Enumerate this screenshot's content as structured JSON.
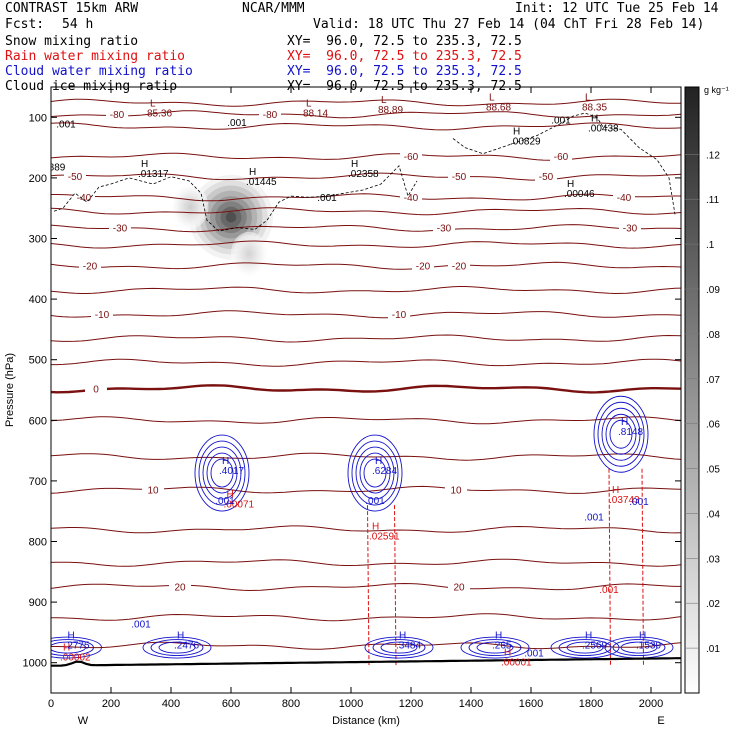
{
  "header": {
    "title": "CONTRAST 15km ARW",
    "source": "NCAR/MMM",
    "init": "Init: 12 UTC Tue 25 Feb 14",
    "fcst_label": "Fcst:",
    "fcst_value": "54 h",
    "valid": "Valid: 18 UTC Thu 27 Feb 14 (04 ChT Fri 28 Feb 14)"
  },
  "fields": [
    {
      "name": "Snow mixing ratio",
      "xy": "XY=  96.0, 72.5 to 235.3, 72.5",
      "color": "#000000"
    },
    {
      "name": "Rain water mixing ratio",
      "xy": "XY=  96.0, 72.5 to 235.3, 72.5",
      "color": "#dd1111"
    },
    {
      "name": "Cloud water mixing ratio",
      "xy": "XY=  96.0, 72.5 to 235.3, 72.5",
      "color": "#1111cc"
    },
    {
      "name": "Cloud ice mixing ratio",
      "xy": "XY=  96.0, 72.5 to 235.3, 72.5",
      "color": "#000000"
    }
  ],
  "colorbar": {
    "unit": "g kg⁻¹",
    "ticks": [
      ".01",
      ".02",
      ".03",
      ".04",
      ".05",
      ".06",
      ".07",
      ".08",
      ".09",
      ".1",
      ".11",
      ".12"
    ],
    "values": [
      0.01,
      0.02,
      0.03,
      0.04,
      0.05,
      0.06,
      0.07,
      0.08,
      0.09,
      0.1,
      0.11,
      0.12
    ],
    "max": 0.135
  },
  "chart_data": {
    "type": "contour",
    "xlabel": "Distance (km)",
    "ylabel": "Pressure (hPa)",
    "xlim": [
      0,
      2100
    ],
    "ylim": [
      1050,
      50
    ],
    "xticks": [
      0,
      200,
      400,
      600,
      800,
      1000,
      1200,
      1400,
      1600,
      1800,
      2000
    ],
    "xtick_labels": [
      "0",
      "200",
      "400",
      "600",
      "800",
      "1000",
      "1200",
      "1400",
      "1600",
      "1800",
      "2000"
    ],
    "yticks": [
      100,
      200,
      300,
      400,
      500,
      600,
      700,
      800,
      900,
      1000
    ],
    "ytick_labels": [
      "100",
      "200",
      "300",
      "400",
      "500",
      "600",
      "700",
      "800",
      "900",
      "1000"
    ],
    "west_label": "W",
    "east_label": "E",
    "temperature_contours": [
      {
        "label": "-80",
        "pressure": 95,
        "at_x": [
          220,
          730
        ]
      },
      {
        "label": "-60",
        "pressure": 165,
        "at_x": [
          1200,
          1700
        ]
      },
      {
        "label": "-50",
        "pressure": 198,
        "at_x": [
          80,
          1360,
          1650
        ]
      },
      {
        "label": "-40",
        "pressure": 232,
        "at_x": [
          110,
          1200,
          1910
        ]
      },
      {
        "label": "-30",
        "pressure": 283,
        "at_x": [
          230,
          1310,
          1930
        ]
      },
      {
        "label": "-20",
        "pressure": 345,
        "at_x": [
          130,
          1240,
          1360
        ]
      },
      {
        "label": "-10",
        "pressure": 425,
        "at_x": [
          170,
          1160
        ]
      },
      {
        "label": "0",
        "pressure": 548,
        "at_x": [
          150
        ]
      },
      {
        "label": "10",
        "pressure": 715,
        "at_x": [
          340,
          1350
        ]
      },
      {
        "label": "20",
        "pressure": 875,
        "at_x": [
          430,
          1360
        ]
      },
      {
        "label": "",
        "pressure": 76,
        "at_x": []
      },
      {
        "label": "",
        "pressure": 115,
        "at_x": []
      },
      {
        "label": "",
        "pressure": 255,
        "at_x": []
      },
      {
        "label": "",
        "pressure": 310,
        "at_x": []
      },
      {
        "label": "",
        "pressure": 385,
        "at_x": []
      },
      {
        "label": "",
        "pressure": 465,
        "at_x": []
      },
      {
        "label": "",
        "pressure": 505,
        "at_x": []
      },
      {
        "label": "",
        "pressure": 600,
        "at_x": []
      },
      {
        "label": "",
        "pressure": 660,
        "at_x": []
      },
      {
        "label": "",
        "pressure": 780,
        "at_x": []
      },
      {
        "label": "",
        "pressure": 835,
        "at_x": []
      },
      {
        "label": "",
        "pressure": 925,
        "at_x": []
      },
      {
        "label": "",
        "pressure": 972,
        "at_x": []
      }
    ],
    "lows": [
      {
        "x": 330,
        "pressure": 82,
        "label": "L",
        "value": "85.36"
      },
      {
        "x": 850,
        "pressure": 82,
        "label": "L",
        "value": "88.14"
      },
      {
        "x": 1100,
        "pressure": 76,
        "label": "L",
        "value": "88.89"
      },
      {
        "x": 1460,
        "pressure": 72,
        "label": "L",
        "value": "88.68"
      },
      {
        "x": 1780,
        "pressure": 72,
        "label": "L",
        "value": "88.35"
      }
    ],
    "snow_maxima": [
      {
        "x": 300,
        "pressure": 182,
        "label": "H",
        "value": ".01317"
      },
      {
        "x": 660,
        "pressure": 195,
        "label": "H",
        "value": ".01445"
      },
      {
        "x": 1000,
        "pressure": 182,
        "label": "H",
        "value": ".02358"
      },
      {
        "x": 1540,
        "pressure": 128,
        "label": "H",
        "value": ".00829"
      },
      {
        "x": 1800,
        "pressure": 107,
        "label": "H",
        "value": ".00438"
      },
      {
        "x": 1720,
        "pressure": 215,
        "label": "H",
        "value": ".00046"
      }
    ],
    "snow_labels": [
      {
        "x": 50,
        "pressure": 117,
        "value": ".001"
      },
      {
        "x": 620,
        "pressure": 114,
        "value": ".001"
      },
      {
        "x": 1700,
        "pressure": 110,
        "value": ".001"
      },
      {
        "x": 920,
        "pressure": 238,
        "value": ".001"
      },
      {
        "x": 20,
        "pressure": 188,
        "value": "889"
      }
    ],
    "snow_contour": [
      [
        10,
        255
      ],
      [
        40,
        250
      ],
      [
        80,
        225
      ],
      [
        120,
        240
      ],
      [
        160,
        215
      ],
      [
        200,
        210
      ],
      [
        260,
        200
      ],
      [
        340,
        210
      ],
      [
        400,
        198
      ],
      [
        460,
        205
      ],
      [
        500,
        225
      ],
      [
        520,
        270
      ],
      [
        560,
        288
      ],
      [
        620,
        282
      ],
      [
        680,
        285
      ],
      [
        720,
        270
      ],
      [
        760,
        240
      ],
      [
        800,
        230
      ],
      [
        860,
        232
      ],
      [
        920,
        230
      ],
      [
        980,
        225
      ],
      [
        1040,
        220
      ],
      [
        1100,
        210
      ],
      [
        1160,
        180
      ],
      [
        1190,
        230
      ],
      [
        1220,
        205
      ]
    ],
    "ice_contour": [
      [
        1340,
        135
      ],
      [
        1380,
        150
      ],
      [
        1440,
        160
      ],
      [
        1500,
        150
      ],
      [
        1560,
        140
      ],
      [
        1620,
        130
      ],
      [
        1660,
        120
      ],
      [
        1700,
        110
      ],
      [
        1740,
        98
      ],
      [
        1780,
        93
      ],
      [
        1820,
        100
      ],
      [
        1840,
        116
      ],
      [
        1900,
        120
      ],
      [
        1960,
        150
      ],
      [
        2020,
        170
      ],
      [
        2060,
        200
      ],
      [
        2080,
        260
      ]
    ],
    "snow_heatmap": [
      {
        "x": 600,
        "pressure": 265,
        "sx": 70,
        "sp": 35,
        "peak": 0.13
      },
      {
        "x": 465,
        "pressure": 248,
        "sx": 30,
        "sp": 18,
        "peak": 0.035
      },
      {
        "x": 660,
        "pressure": 325,
        "sx": 30,
        "sp": 18,
        "peak": 0.03
      }
    ],
    "rain_maxima": [
      {
        "x": 585,
        "pressure": 727,
        "label": "H",
        "value": ".00071"
      },
      {
        "x": 1070,
        "pressure": 780,
        "label": "H",
        "value": ".02591"
      },
      {
        "x": 1870,
        "pressure": 720,
        "label": "H",
        "value": ".03743"
      },
      {
        "x": 40,
        "pressure": 980,
        "label": "H",
        "value": ".00002"
      },
      {
        "x": 1510,
        "pressure": 988,
        "label": "H",
        "value": ".00001"
      }
    ],
    "rain_labels": [
      {
        "x": 1860,
        "pressure": 885,
        "value": ".001"
      }
    ],
    "cloud_maxima": [
      {
        "x": 570,
        "pressure": 672,
        "label": "H",
        "value": ".4017"
      },
      {
        "x": 1080,
        "pressure": 672,
        "label": "H",
        "value": ".6284"
      },
      {
        "x": 1900,
        "pressure": 608,
        "label": "H",
        "value": ".8148"
      },
      {
        "x": 55,
        "pressure": 960,
        "label": "H",
        "value": ".2775"
      },
      {
        "x": 420,
        "pressure": 960,
        "label": "H",
        "value": ".2476"
      },
      {
        "x": 1160,
        "pressure": 960,
        "label": "H",
        "value": ".3484"
      },
      {
        "x": 1480,
        "pressure": 960,
        "label": "H",
        "value": ".265"
      },
      {
        "x": 1780,
        "pressure": 960,
        "label": "H",
        "value": ".2569"
      },
      {
        "x": 1960,
        "pressure": 960,
        "label": "H",
        "value": ".1539"
      }
    ],
    "cloud_labels": [
      {
        "x": 580,
        "pressure": 738,
        "value": ".001"
      },
      {
        "x": 1080,
        "pressure": 738,
        "value": ".001"
      },
      {
        "x": 1960,
        "pressure": 740,
        "value": ".001"
      },
      {
        "x": 1810,
        "pressure": 765,
        "value": ".001"
      },
      {
        "x": 300,
        "pressure": 942,
        "value": ".001"
      },
      {
        "x": 1610,
        "pressure": 990,
        "value": ".001"
      }
    ]
  }
}
